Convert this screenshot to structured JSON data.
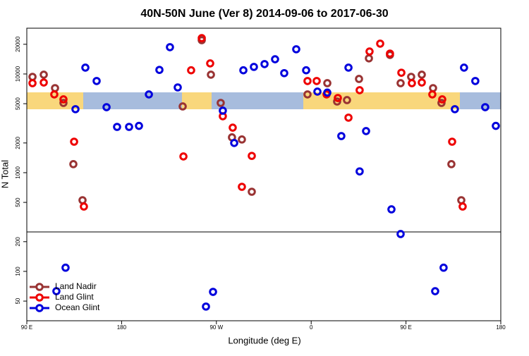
{
  "chart_data": {
    "type": "scatter",
    "title": "40N-50N June (Ver 8)   2014-09-06 to 2017-06-30",
    "x_label": "Longitude (deg E)",
    "y_label": "N Total",
    "xlim": [
      90,
      540
    ],
    "ylim": [
      31.6,
      29100
    ],
    "log_y": true,
    "xticks": [
      {
        "value": 90,
        "label": "90 E"
      },
      180,
      {
        "value": 270,
        "label": "90 W"
      },
      {
        "value": 360,
        "label": "0"
      },
      {
        "value": 450,
        "label": "90 E"
      },
      {
        "value": 540,
        "label": "180"
      }
    ],
    "yticks": [
      50,
      100,
      200,
      500,
      1000,
      2000,
      5000,
      10000,
      20000
    ],
    "legend": "lower left",
    "series": [
      {
        "name": "Land Nadir",
        "color": "#993333",
        "x": [
          95.4,
          106.1,
          116.8,
          124.8,
          134.2,
          142.9,
          256.1,
          238.0,
          264.8,
          274.1,
          284.8,
          294.2,
          303.6,
          356.5,
          375.3,
          384.6,
          394.0,
          405.4,
          414.8,
          434.8,
          444.9,
          454.9,
          465.0,
          475.7,
          483.7,
          493.1,
          502.5
        ],
        "values": [
          9350,
          9840,
          7190,
          5090,
          1220,
          526,
          22000,
          4690,
          9840,
          5090,
          2280,
          2170,
          641,
          6210,
          8070,
          5260,
          5440,
          8910,
          14400,
          15600,
          8070,
          9350,
          9840,
          7190,
          5090,
          1220,
          526
        ]
      },
      {
        "name": "Land Glint",
        "color": "#ee0000",
        "x": [
          95.4,
          106.1,
          116.1,
          124.8,
          134.9,
          144.2,
          238.7,
          246.0,
          256.1,
          264.1,
          276.1,
          285.5,
          294.2,
          303.6,
          356.5,
          365.2,
          374.6,
          385.3,
          395.4,
          406.0,
          415.4,
          425.5,
          434.8,
          445.6,
          455.6,
          465.0,
          475.0,
          484.4,
          493.8,
          503.8
        ],
        "values": [
          8070,
          8200,
          6210,
          5530,
          2060,
          454,
          1460,
          10900,
          23100,
          12800,
          3730,
          2860,
          719,
          1480,
          8490,
          8490,
          6210,
          5710,
          3610,
          6850,
          16900,
          20300,
          16100,
          10300,
          8070,
          8200,
          6210,
          5530,
          2060,
          454
        ]
      },
      {
        "name": "Ocean Glint",
        "color": "#0000dd",
        "x": [
          118.1,
          126.8,
          136.2,
          145.6,
          156.3,
          165.7,
          175.7,
          187.1,
          196.5,
          205.9,
          215.9,
          225.9,
          233.3,
          260.1,
          266.8,
          276.1,
          286.9,
          295.6,
          305.6,
          315.7,
          325.7,
          334.4,
          345.8,
          355.2,
          365.9,
          375.3,
          388.6,
          395.4,
          406.0,
          412.1,
          436.2,
          444.9,
          477.7,
          485.7,
          496.4,
          505.1,
          515.8,
          525.2,
          535.3
        ],
        "values": [
          63,
          109,
          4400,
          11600,
          8490,
          4610,
          2910,
          2910,
          2980,
          6210,
          11000,
          18700,
          7310,
          44,
          62,
          4250,
          2000,
          10900,
          11800,
          12600,
          14100,
          10200,
          17800,
          10900,
          6630,
          6480,
          2350,
          11600,
          1030,
          2640,
          425,
          239,
          63,
          109,
          4400,
          11600,
          8490,
          4610,
          2980
        ]
      }
    ]
  }
}
